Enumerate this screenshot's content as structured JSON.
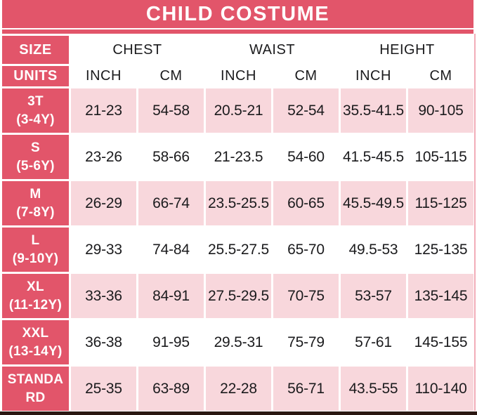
{
  "title": "CHILD COSTUME",
  "colors": {
    "header_red": "#e2556a",
    "row_pink": "#f8d7dc",
    "text_dark": "#1b1b1d",
    "bottom_line": "#2a1711",
    "right_hairline": "#f2acb8"
  },
  "table": {
    "size_header": "SIZE",
    "units_header": "UNITS",
    "groups": [
      {
        "label": "CHEST"
      },
      {
        "label": "WAIST"
      },
      {
        "label": "HEIGHT"
      }
    ],
    "unit_columns": [
      "INCH",
      "CM",
      "INCH",
      "CM",
      "INCH",
      "CM"
    ],
    "rows": [
      {
        "size": "3T",
        "age": "(3-4Y)",
        "shaded": true,
        "values": [
          "21-23",
          "54-58",
          "20.5-21",
          "52-54",
          "35.5-41.5",
          "90-105"
        ]
      },
      {
        "size": "S",
        "age": "(5-6Y)",
        "shaded": false,
        "values": [
          "23-26",
          "58-66",
          "21-23.5",
          "54-60",
          "41.5-45.5",
          "105-115"
        ]
      },
      {
        "size": "M",
        "age": "(7-8Y)",
        "shaded": true,
        "values": [
          "26-29",
          "66-74",
          "23.5-25.5",
          "60-65",
          "45.5-49.5",
          "115-125"
        ]
      },
      {
        "size": "L",
        "age": "(9-10Y)",
        "shaded": false,
        "values": [
          "29-33",
          "74-84",
          "25.5-27.5",
          "65-70",
          "49.5-53",
          "125-135"
        ]
      },
      {
        "size": "XL",
        "age": "(11-12Y)",
        "shaded": true,
        "values": [
          "33-36",
          "84-91",
          "27.5-29.5",
          "70-75",
          "53-57",
          "135-145"
        ]
      },
      {
        "size": "XXL",
        "age": "(13-14Y)",
        "shaded": false,
        "values": [
          "36-38",
          "91-95",
          "29.5-31",
          "75-79",
          "57-61",
          "145-155"
        ]
      },
      {
        "size": "STANDARD",
        "age": "",
        "shaded": true,
        "values": [
          "25-35",
          "63-89",
          "22-28",
          "56-71",
          "43.5-55",
          "110-140"
        ]
      }
    ]
  },
  "chart_data": {
    "type": "table",
    "title": "CHILD COSTUME",
    "columns": [
      "SIZE",
      "CHEST INCH",
      "CHEST CM",
      "WAIST INCH",
      "WAIST CM",
      "HEIGHT INCH",
      "HEIGHT CM"
    ],
    "rows": [
      [
        "3T (3-4Y)",
        "21-23",
        "54-58",
        "20.5-21",
        "52-54",
        "35.5-41.5",
        "90-105"
      ],
      [
        "S (5-6Y)",
        "23-26",
        "58-66",
        "21-23.5",
        "54-60",
        "41.5-45.5",
        "105-115"
      ],
      [
        "M (7-8Y)",
        "26-29",
        "66-74",
        "23.5-25.5",
        "60-65",
        "45.5-49.5",
        "115-125"
      ],
      [
        "L (9-10Y)",
        "29-33",
        "74-84",
        "25.5-27.5",
        "65-70",
        "49.5-53",
        "125-135"
      ],
      [
        "XL (11-12Y)",
        "33-36",
        "84-91",
        "27.5-29.5",
        "70-75",
        "53-57",
        "135-145"
      ],
      [
        "XXL (13-14Y)",
        "36-38",
        "91-95",
        "29.5-31",
        "75-79",
        "57-61",
        "145-155"
      ],
      [
        "STANDARD",
        "25-35",
        "63-89",
        "22-28",
        "56-71",
        "43.5-55",
        "110-140"
      ]
    ]
  }
}
